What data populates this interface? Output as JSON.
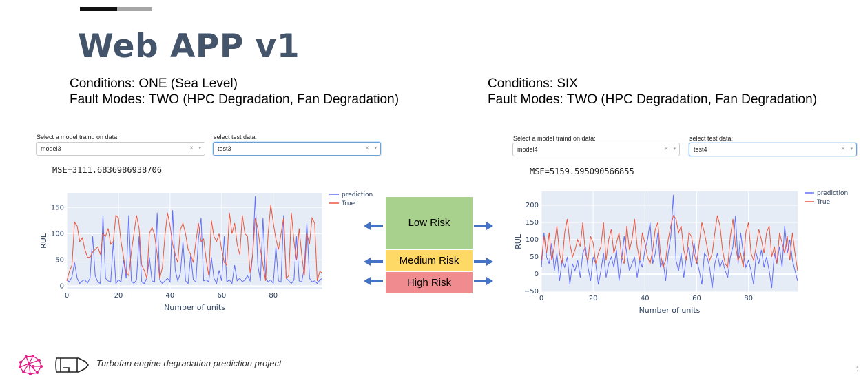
{
  "slide": {
    "title": "Web APP v1",
    "footer": "Turbofan engine degradation prediction project",
    "page_mark": ":"
  },
  "left_panel": {
    "conditions": "Conditions: ONE (Sea Level)",
    "fault_modes": "Fault Modes: TWO (HPC Degradation, Fan Degradation)",
    "model_label": "Select a model traind on data:",
    "model_value": "model3",
    "test_label": "select test data:",
    "test_value": "test3",
    "mse": "MSE=3111.6836986938706",
    "clear_glyph": "×",
    "caret_glyph": "▾"
  },
  "right_panel": {
    "conditions": "Conditions: SIX",
    "fault_modes": "Fault Modes: TWO (HPC Degradation, Fan Degradation)",
    "model_label": "Select a model traind on data:",
    "model_value": "model4",
    "test_label": "select test data:",
    "test_value": "test4",
    "mse": "MSE=5159.595090566855",
    "clear_glyph": "×",
    "caret_glyph": "▾"
  },
  "risk_legend": {
    "low": "Low Risk",
    "medium": "Medium Risk",
    "high": "High Risk",
    "colors": {
      "low": "#a9d18e",
      "medium": "#ffd966",
      "high": "#f08c90",
      "arrow": "#4472c4"
    }
  },
  "chart_data": [
    {
      "type": "line",
      "xlabel": "Number of units",
      "ylabel": "RUL",
      "xlim": [
        0,
        99
      ],
      "ylim": [
        -6,
        178
      ],
      "xticks": [
        0,
        20,
        40,
        60,
        80
      ],
      "yticks": [
        0,
        50,
        100,
        150
      ],
      "grid": true,
      "legend": "top-right",
      "series": [
        {
          "name": "prediction",
          "color": "#636efa",
          "values": [
            12,
            8,
            18,
            45,
            15,
            5,
            10,
            12,
            6,
            15,
            95,
            20,
            8,
            5,
            135,
            15,
            10,
            8,
            85,
            5,
            12,
            8,
            50,
            15,
            135,
            10,
            5,
            12,
            95,
            8,
            5,
            15,
            55,
            10,
            8,
            140,
            12,
            5,
            10,
            15,
            8,
            145,
            30,
            10,
            25,
            85,
            10,
            5,
            60,
            12,
            8,
            90,
            130,
            10,
            12,
            8,
            55,
            15,
            5,
            30,
            10,
            95,
            8,
            12,
            5,
            40,
            10,
            15,
            8,
            12,
            20,
            10,
            60,
            172,
            40,
            10,
            130,
            15,
            8,
            12,
            5,
            75,
            10,
            8,
            135,
            15,
            10,
            5,
            12,
            95,
            10,
            8,
            35,
            120,
            15,
            8,
            10,
            5,
            12,
            15
          ]
        },
        {
          "name": "True",
          "color": "#ef553b",
          "values": [
            10,
            28,
            40,
            122,
            115,
            85,
            92,
            70,
            55,
            55,
            65,
            70,
            75,
            60,
            100,
            95,
            110,
            80,
            85,
            135,
            130,
            85,
            55,
            25,
            20,
            65,
            100,
            135,
            110,
            40,
            30,
            15,
            100,
            112,
            98,
            60,
            15,
            35,
            95,
            140,
            115,
            80,
            60,
            45,
            108,
            120,
            100,
            70,
            60,
            45,
            85,
            120,
            85,
            90,
            50,
            20,
            125,
            95,
            85,
            100,
            70,
            45,
            40,
            140,
            100,
            120,
            80,
            60,
            135,
            100,
            95,
            25,
            60,
            130,
            110,
            70,
            40,
            10,
            100,
            155,
            120,
            90,
            70,
            100,
            130,
            15,
            20,
            140,
            85,
            50,
            110,
            60,
            20,
            100,
            80,
            130,
            120,
            10,
            28,
            25
          ]
        }
      ]
    },
    {
      "type": "line",
      "xlabel": "Number of units",
      "ylabel": "RUL",
      "xlim": [
        0,
        99
      ],
      "ylim": [
        -52,
        240
      ],
      "xticks": [
        0,
        20,
        40,
        60,
        80
      ],
      "yticks": [
        -50,
        0,
        50,
        100,
        150,
        200
      ],
      "grid": true,
      "legend": "top-right",
      "series": [
        {
          "name": "prediction",
          "color": "#636efa",
          "values": [
            20,
            120,
            50,
            30,
            90,
            10,
            60,
            -20,
            40,
            20,
            50,
            -30,
            30,
            10,
            40,
            -10,
            60,
            80,
            20,
            -20,
            50,
            30,
            -30,
            10,
            60,
            -10,
            30,
            50,
            20,
            70,
            -20,
            40,
            110,
            60,
            10,
            30,
            50,
            -10,
            40,
            20,
            70,
            100,
            150,
            30,
            60,
            120,
            20,
            40,
            -20,
            60,
            110,
            230,
            40,
            10,
            60,
            -10,
            50,
            80,
            20,
            90,
            40,
            10,
            -30,
            60,
            50,
            20,
            -40,
            30,
            60,
            20,
            40,
            10,
            -10,
            50,
            80,
            170,
            30,
            120,
            60,
            20,
            40,
            10,
            -30,
            60,
            30,
            70,
            20,
            50,
            10,
            -40,
            60,
            30,
            80,
            20,
            140,
            60,
            100,
            40,
            10,
            -20
          ]
        },
        {
          "name": "True",
          "color": "#ef553b",
          "values": [
            40,
            110,
            60,
            120,
            40,
            80,
            140,
            60,
            30,
            120,
            160,
            90,
            50,
            70,
            100,
            80,
            150,
            60,
            40,
            110,
            90,
            30,
            60,
            80,
            150,
            40,
            100,
            130,
            60,
            90,
            120,
            50,
            30,
            140,
            70,
            100,
            160,
            80,
            40,
            120,
            90,
            50,
            30,
            70,
            130,
            150,
            60,
            20,
            40,
            100,
            140,
            170,
            160,
            120,
            140,
            70,
            40,
            120,
            110,
            60,
            30,
            90,
            150,
            120,
            80,
            40,
            60,
            120,
            170,
            140,
            70,
            30,
            20,
            110,
            160,
            80,
            40,
            60,
            20,
            120,
            150,
            60,
            40,
            80,
            130,
            100,
            60,
            120,
            140,
            50,
            80,
            30,
            120,
            90,
            60,
            110,
            40,
            120,
            60,
            10
          ]
        }
      ]
    }
  ]
}
